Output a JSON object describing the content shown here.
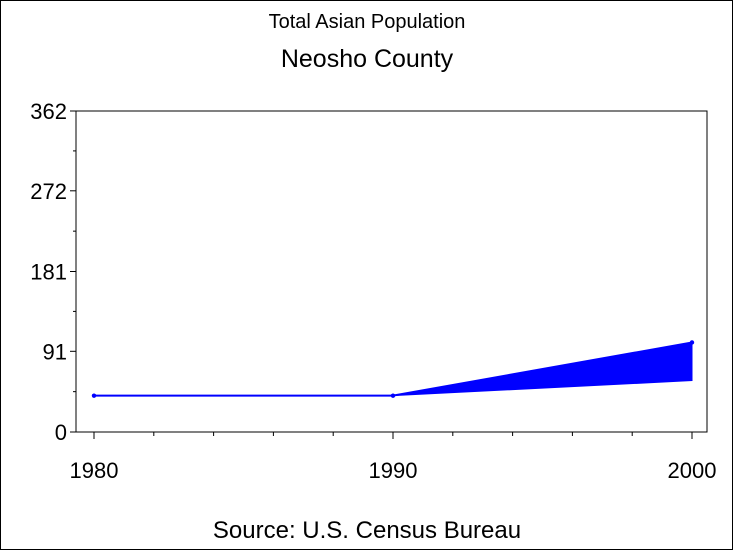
{
  "chart_data": {
    "type": "line",
    "title": "Total Asian Population",
    "subtitle": "Neosho County",
    "source": "Source: U.S. Census Bureau",
    "x": [
      1980,
      1990,
      2000
    ],
    "x_tick_labels": [
      "1980",
      "1990",
      "2000"
    ],
    "y_tick_values": [
      0,
      91,
      181,
      272,
      362
    ],
    "y_tick_labels": [
      "0",
      "91",
      "181",
      "272",
      "362"
    ],
    "ylim": [
      0,
      362
    ],
    "xlim": [
      1980,
      2000
    ],
    "series": [
      {
        "values": [
          41,
          41,
          101
        ]
      }
    ],
    "range_band": {
      "x_start": 1990,
      "x_end": 2000,
      "low_end": 58,
      "high_end": 101
    },
    "grid": false,
    "colors": {
      "series": "#0000ff",
      "axis": "#000000",
      "background": "#ffffff"
    }
  }
}
